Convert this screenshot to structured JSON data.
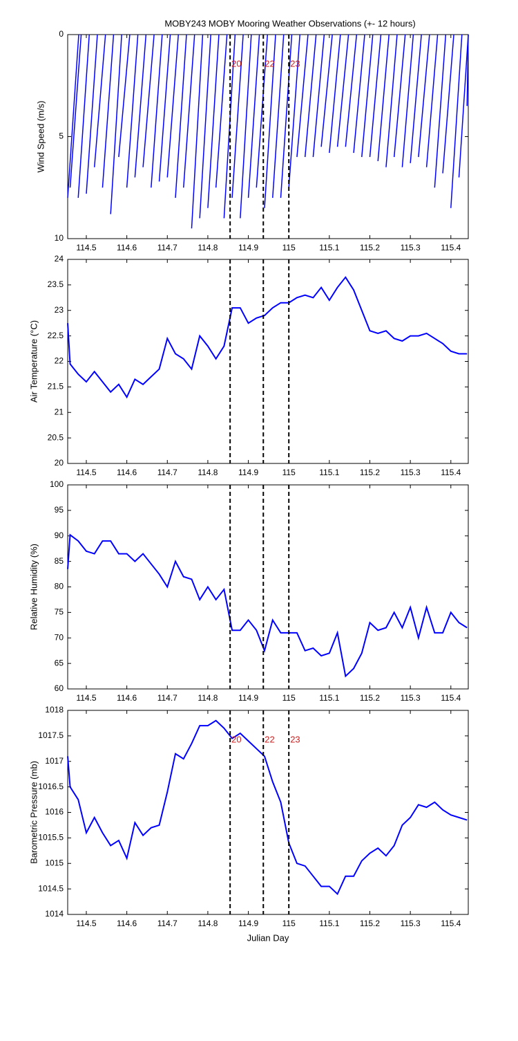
{
  "events": [
    {
      "x": 114.855,
      "label": "20"
    },
    {
      "x": 114.937,
      "label": "22"
    },
    {
      "x": 115.0,
      "label": "23"
    }
  ],
  "chart_data": [
    {
      "type": "stick",
      "title": "MOBY243 MOBY Mooring Weather Observations (+- 12 hours)",
      "ylabel": "Wind Speed (m/s)",
      "color": "#0000ff",
      "yreverse": true,
      "event_labels": true,
      "x": [
        114.454,
        114.46,
        114.48,
        114.5,
        114.52,
        114.54,
        114.56,
        114.58,
        114.6,
        114.62,
        114.64,
        114.66,
        114.68,
        114.7,
        114.72,
        114.74,
        114.76,
        114.78,
        114.8,
        114.82,
        114.84,
        114.86,
        114.88,
        114.9,
        114.92,
        114.94,
        114.96,
        114.98,
        115.0,
        115.02,
        115.04,
        115.06,
        115.08,
        115.1,
        115.12,
        115.14,
        115.16,
        115.18,
        115.2,
        115.22,
        115.24,
        115.26,
        115.28,
        115.3,
        115.32,
        115.34,
        115.36,
        115.38,
        115.4,
        115.42,
        115.44
      ],
      "values": [
        8,
        7.5,
        8,
        7.8,
        6.5,
        7.5,
        8.8,
        6,
        7.5,
        7,
        6.5,
        7.5,
        7.2,
        7,
        8,
        7.5,
        9.5,
        9,
        8.5,
        7.5,
        9,
        8,
        9,
        8,
        7.5,
        8.5,
        8,
        8,
        7.5,
        6,
        6,
        6,
        5.5,
        5.8,
        5.5,
        5.5,
        5.8,
        6,
        6,
        6.2,
        6.5,
        6,
        6.5,
        6.3,
        6,
        6.5,
        7.5,
        6.8,
        8.5,
        7,
        3.5
      ],
      "xlim": [
        114.454,
        115.443
      ],
      "xticks": [
        114.5,
        114.6,
        114.7,
        114.8,
        114.9,
        115,
        115.1,
        115.2,
        115.3,
        115.4
      ],
      "ylim": [
        0,
        10
      ],
      "yticks": [
        0,
        5,
        10
      ]
    },
    {
      "type": "line",
      "ylabel": "Air Temperature (°C)",
      "color": "#0000ff",
      "event_labels": false,
      "x": [
        114.454,
        114.46,
        114.48,
        114.5,
        114.52,
        114.54,
        114.56,
        114.58,
        114.6,
        114.62,
        114.64,
        114.66,
        114.68,
        114.7,
        114.72,
        114.74,
        114.76,
        114.78,
        114.8,
        114.82,
        114.84,
        114.86,
        114.88,
        114.9,
        114.92,
        114.94,
        114.96,
        114.98,
        115.0,
        115.02,
        115.04,
        115.06,
        115.08,
        115.1,
        115.12,
        115.14,
        115.16,
        115.18,
        115.2,
        115.22,
        115.24,
        115.26,
        115.28,
        115.3,
        115.32,
        115.34,
        115.36,
        115.38,
        115.4,
        115.42,
        115.44
      ],
      "values": [
        22.75,
        21.95,
        21.75,
        21.6,
        21.8,
        21.6,
        21.4,
        21.55,
        21.3,
        21.65,
        21.55,
        21.7,
        21.85,
        22.45,
        22.15,
        22.05,
        21.85,
        22.5,
        22.3,
        22.05,
        22.3,
        23.05,
        23.05,
        22.75,
        22.85,
        22.9,
        23.05,
        23.15,
        23.15,
        23.25,
        23.3,
        23.25,
        23.45,
        23.2,
        23.45,
        23.65,
        23.4,
        23.0,
        22.6,
        22.55,
        22.6,
        22.45,
        22.4,
        22.5,
        22.5,
        22.55,
        22.45,
        22.35,
        22.2,
        22.15,
        22.15
      ],
      "xlim": [
        114.454,
        115.443
      ],
      "xticks": [
        114.5,
        114.6,
        114.7,
        114.8,
        114.9,
        115,
        115.1,
        115.2,
        115.3,
        115.4
      ],
      "ylim": [
        20,
        24
      ],
      "yticks": [
        20,
        20.5,
        21,
        21.5,
        22,
        22.5,
        23,
        23.5,
        24
      ]
    },
    {
      "type": "line",
      "ylabel": "Relative Humidity (%)",
      "color": "#0000ff",
      "event_labels": false,
      "x": [
        114.454,
        114.46,
        114.48,
        114.5,
        114.52,
        114.54,
        114.56,
        114.58,
        114.6,
        114.62,
        114.64,
        114.66,
        114.68,
        114.7,
        114.72,
        114.74,
        114.76,
        114.78,
        114.8,
        114.82,
        114.84,
        114.86,
        114.88,
        114.9,
        114.92,
        114.94,
        114.96,
        114.98,
        115.0,
        115.02,
        115.04,
        115.06,
        115.08,
        115.1,
        115.12,
        115.14,
        115.16,
        115.18,
        115.2,
        115.22,
        115.24,
        115.26,
        115.28,
        115.3,
        115.32,
        115.34,
        115.36,
        115.38,
        115.4,
        115.42,
        115.44
      ],
      "values": [
        83.5,
        90.2,
        89,
        87,
        86.5,
        89,
        89,
        86.5,
        86.5,
        85,
        86.5,
        84.5,
        82.5,
        80,
        85,
        82,
        81.5,
        77.5,
        80,
        77.5,
        79.5,
        71.5,
        71.5,
        73.5,
        71.5,
        67.5,
        73.5,
        71,
        71,
        71,
        67.5,
        68,
        66.5,
        67,
        71,
        62.5,
        64,
        67,
        73,
        71.5,
        72,
        75,
        72,
        76,
        70,
        76,
        71,
        71,
        75,
        73,
        72
      ],
      "xlim": [
        114.454,
        115.443
      ],
      "xticks": [
        114.5,
        114.6,
        114.7,
        114.8,
        114.9,
        115,
        115.1,
        115.2,
        115.3,
        115.4
      ],
      "ylim": [
        60,
        100
      ],
      "yticks": [
        60,
        65,
        70,
        75,
        80,
        85,
        90,
        95,
        100
      ]
    },
    {
      "type": "line",
      "ylabel": "Barometric Pressure (mb)",
      "xlabel": "Julian Day",
      "color": "#0000ff",
      "event_labels": true,
      "x": [
        114.454,
        114.46,
        114.48,
        114.5,
        114.52,
        114.54,
        114.56,
        114.58,
        114.6,
        114.62,
        114.64,
        114.66,
        114.68,
        114.7,
        114.72,
        114.74,
        114.76,
        114.78,
        114.8,
        114.82,
        114.84,
        114.86,
        114.88,
        114.9,
        114.92,
        114.94,
        114.96,
        114.98,
        115.0,
        115.02,
        115.04,
        115.06,
        115.08,
        115.1,
        115.12,
        115.14,
        115.16,
        115.18,
        115.2,
        115.22,
        115.24,
        115.26,
        115.28,
        115.3,
        115.32,
        115.34,
        115.36,
        115.38,
        115.4,
        115.42,
        115.44
      ],
      "values": [
        1017.1,
        1016.5,
        1016.25,
        1015.6,
        1015.9,
        1015.6,
        1015.35,
        1015.45,
        1015.1,
        1015.8,
        1015.55,
        1015.7,
        1015.75,
        1016.4,
        1017.15,
        1017.05,
        1017.35,
        1017.7,
        1017.7,
        1017.8,
        1017.65,
        1017.45,
        1017.55,
        1017.4,
        1017.25,
        1017.1,
        1016.6,
        1016.2,
        1015.4,
        1015.0,
        1014.95,
        1014.75,
        1014.55,
        1014.55,
        1014.4,
        1014.75,
        1014.75,
        1015.05,
        1015.2,
        1015.3,
        1015.15,
        1015.35,
        1015.75,
        1015.9,
        1016.15,
        1016.1,
        1016.2,
        1016.05,
        1015.95,
        1015.9,
        1015.85
      ],
      "xlim": [
        114.454,
        115.443
      ],
      "xticks": [
        114.5,
        114.6,
        114.7,
        114.8,
        114.9,
        115,
        115.1,
        115.2,
        115.3,
        115.4
      ],
      "ylim": [
        1014,
        1018
      ],
      "yticks": [
        1014,
        1014.5,
        1015,
        1015.5,
        1016,
        1016.5,
        1017,
        1017.5,
        1018
      ]
    }
  ]
}
